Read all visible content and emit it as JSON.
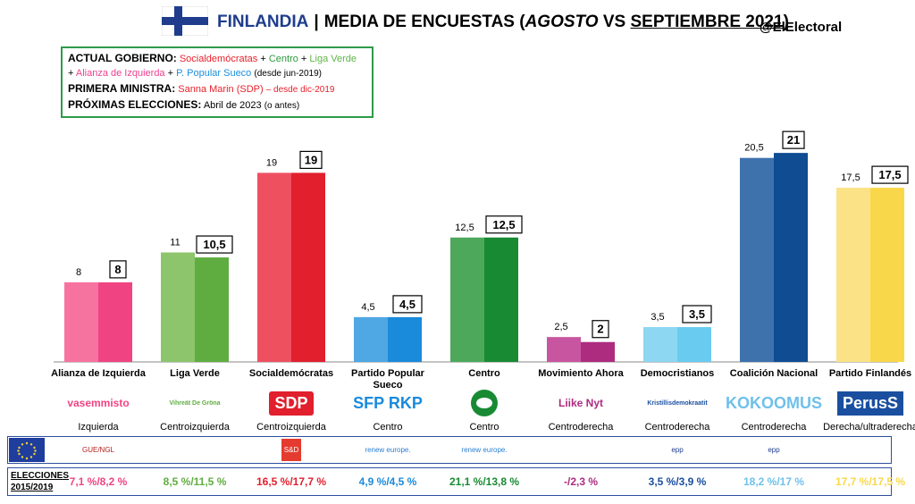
{
  "header": {
    "country": "FINLANDIA",
    "separator": "|",
    "title_prefix": "MEDIA DE ENCUESTAS (",
    "month_a": "AGOSTO",
    "vs": " VS ",
    "month_b": "SEPTIEMBRE 2021",
    "title_suffix": ")",
    "handle": "@ElElectoral"
  },
  "infobox": {
    "gov_label": "ACTUAL GOBIERNO:",
    "gov_p1": "Socialdemócratas",
    "plus": " + ",
    "gov_p2": "Centro",
    "gov_p3": "Liga Verde",
    "plus_lead": "+ ",
    "gov_p4": "Alianza de Izquierda",
    "gov_p5": "P. Popular Sueco",
    "gov_since": "(desde jun-2019)",
    "pm_label": "PRIMERA MINISTRA:",
    "pm_name": "Sanna Marin (SDP)",
    "pm_since": "– desde dic-2019",
    "next_label": "PRÓXIMAS ELECCIONES:",
    "next_value": "Abril de 2023",
    "next_note": "(o antes)"
  },
  "chart_data": {
    "type": "bar",
    "categories": [
      "Alianza de Izquierda",
      "Liga Verde",
      "Socialdemócratas",
      "Partido Popular Sueco",
      "Centro",
      "Movimiento Ahora",
      "Democristianos",
      "Coalición Nacional",
      "Partido Finlandés"
    ],
    "series": [
      {
        "name": "Agosto",
        "values": [
          8,
          11,
          19,
          4.5,
          12.5,
          2.5,
          3.5,
          20.5,
          17.5
        ]
      },
      {
        "name": "Septiembre",
        "values": [
          8,
          10.5,
          19,
          4.5,
          12.5,
          2,
          3.5,
          21,
          17.5
        ]
      }
    ],
    "value_labels_a": [
      "8",
      "11",
      "19",
      "4,5",
      "12,5",
      "2,5",
      "3,5",
      "20,5",
      "17,5"
    ],
    "value_labels_b": [
      "8",
      "10,5",
      "19",
      "4,5",
      "12,5",
      "2",
      "3,5",
      "21",
      "17,5"
    ],
    "colors_a": [
      "#f7739f",
      "#8cc56b",
      "#ee5060",
      "#4fa7e3",
      "#4da85c",
      "#c8559f",
      "#8dd7f3",
      "#3d72ad",
      "#fbe286"
    ],
    "colors_b": [
      "#f04482",
      "#5fad41",
      "#e11f2d",
      "#1a8adb",
      "#188a33",
      "#ad2c80",
      "#6acbf0",
      "#0f4c92",
      "#f8d84a"
    ],
    "ylim": [
      0,
      22
    ],
    "grid": false,
    "legend": "none"
  },
  "parties": [
    {
      "name": "Alianza de Izquierda",
      "group": "Izquierda",
      "logo_text": "vasemmisto",
      "elections": "7,1 %/8,2 %",
      "color": "#f04482"
    },
    {
      "name": "Liga Verde",
      "group": "Centroizquierda",
      "logo_text": "Vihreät De Gröna",
      "elections": "8,5 %/11,5 %",
      "color": "#5fad41"
    },
    {
      "name": "Socialdemócratas",
      "group": "Centroizquierda",
      "logo_text": "SDP",
      "elections": "16,5 %/17,7 %",
      "color": "#e11f2d"
    },
    {
      "name": "Partido Popular Sueco",
      "group": "Centro",
      "logo_text": "SFP RKP",
      "elections": "4,9 %/4,5 %",
      "color": "#1a8adb"
    },
    {
      "name": "Centro",
      "group": "Centro",
      "logo_text": "",
      "elections": "21,1 %/13,8 %",
      "color": "#188a33"
    },
    {
      "name": "Movimiento Ahora",
      "group": "Centroderecha",
      "logo_text": "Liike Nyt",
      "elections": "-/2,3 %",
      "color": "#ad2c80"
    },
    {
      "name": "Democristianos",
      "group": "Centroderecha",
      "logo_text": "Kristillisdemokraatit",
      "elections": "3,5 %/3,9 %",
      "color": "#1a4fa0"
    },
    {
      "name": "Coalición Nacional",
      "group": "Centroderecha",
      "logo_text": "KOKOOMUS",
      "elections": "18,2 %/17 %",
      "color": "#6fc0ea"
    },
    {
      "name": "Partido Finlandés",
      "group": "Derecha/ultraderecha",
      "logo_text": "PerusS",
      "elections": "17,7 %/17,5 %",
      "color": "#f8d84a"
    }
  ],
  "eu_groups": [
    "GUE/NGL",
    "",
    "S&D",
    "renew europe.",
    "renew europe.",
    "",
    "epp",
    "epp",
    ""
  ],
  "elections_label": "ELECCIONES 2015/2019"
}
